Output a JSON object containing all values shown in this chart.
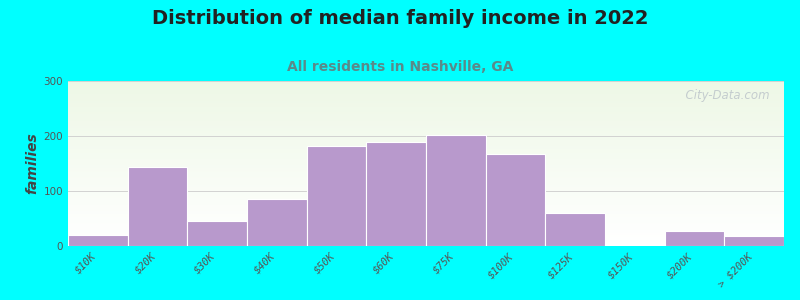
{
  "title": "Distribution of median family income in 2022",
  "subtitle": "All residents in Nashville, GA",
  "ylabel": "families",
  "background_outer": "#00FFFF",
  "bar_color": "#b899cc",
  "bar_edge_color": "#ffffff",
  "categories": [
    "$10K",
    "$20K",
    "$30K",
    "$40K",
    "$50K",
    "$60K",
    "$75K",
    "$100K",
    "$125K",
    "$150K",
    "$200K",
    "> $200K"
  ],
  "values": [
    20,
    143,
    45,
    85,
    182,
    190,
    202,
    168,
    60,
    0,
    28,
    18
  ],
  "ylim": [
    0,
    300
  ],
  "yticks": [
    0,
    100,
    200,
    300
  ],
  "watermark": "  City-Data.com",
  "title_fontsize": 14,
  "subtitle_fontsize": 10,
  "ylabel_fontsize": 10,
  "tick_fontsize": 7.5
}
